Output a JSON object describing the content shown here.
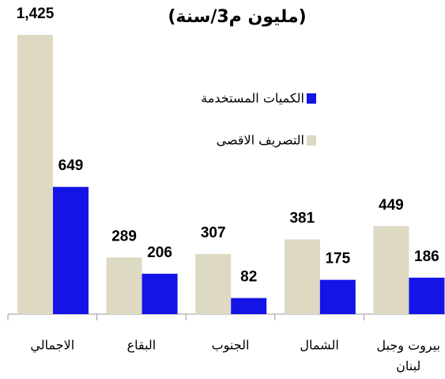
{
  "chart_data": {
    "type": "bar",
    "title": "(مليون م3/سنة)",
    "categories": [
      "الاجمالي",
      "البقاع",
      "الجنوب",
      "الشمال",
      "بيروت وجبل لبنان"
    ],
    "series": [
      {
        "name": "التصريف الاقصى",
        "color": "#ddd9c3",
        "values": [
          1425,
          289,
          307,
          381,
          449
        ],
        "value_labels": [
          "1,425",
          "289",
          "307",
          "381",
          "449"
        ]
      },
      {
        "name": "الكميات المستخدمة",
        "color": "#1414e6",
        "values": [
          649,
          206,
          82,
          175,
          186
        ]
      }
    ]
  }
}
